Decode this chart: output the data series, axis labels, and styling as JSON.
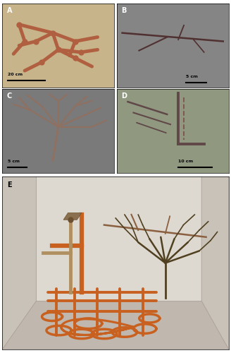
{
  "figure_width": 3.28,
  "figure_height": 5.0,
  "dpi": 100,
  "background_color": "#ffffff",
  "outer_border": "#000000",
  "panel_A": {
    "bg_color": "#c8b48a",
    "fossil_color": "#b06040",
    "scale_text": "20 cm"
  },
  "panel_B": {
    "bg_color": "#858585",
    "fossil_color": "#404040",
    "scale_text": "5 cm"
  },
  "panel_C": {
    "bg_color": "#7a7a7a",
    "fossil_color": "#907060",
    "scale_text": "5 cm"
  },
  "panel_D": {
    "bg_color": "#909880",
    "fossil_color": "#604848",
    "scale_text": "10 cm"
  },
  "panel_E": {
    "bg_color": "#d8d0c8",
    "backwall_color": "#ddd8d0",
    "sidewall_color": "#c8c2b8",
    "floor_color": "#c0b8ae",
    "edge_color": "#aaa098",
    "orange_tube": "#c86020",
    "dark_tube": "#3d3010",
    "tan_tube": "#b09060",
    "medium_brown": "#8B6040"
  }
}
